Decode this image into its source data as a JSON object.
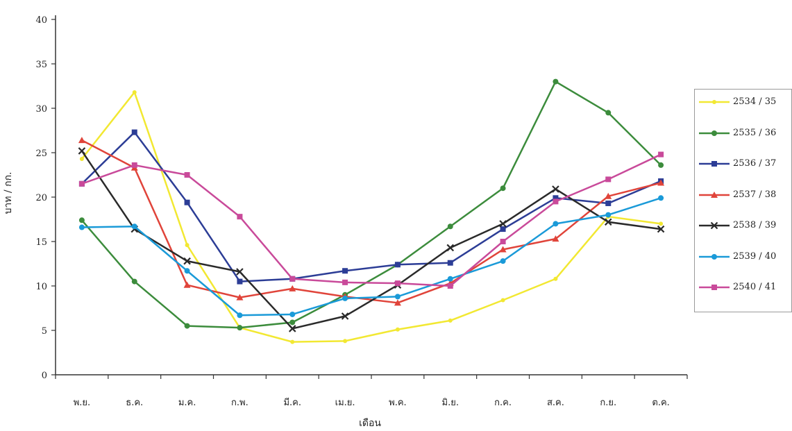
{
  "chart_data": {
    "type": "line",
    "categories": [
      "พ.ย.",
      "ธ.ค.",
      "ม.ค.",
      "ก.พ.",
      "มี.ค.",
      "เม.ย.",
      "พ.ค.",
      "มิ.ย.",
      "ก.ค.",
      "ส.ค.",
      "ก.ย.",
      "ต.ค."
    ],
    "xlabel": "เดือน",
    "ylabel": "บาท / กก.",
    "ylim": [
      0,
      40
    ],
    "yticks": [
      0,
      5,
      10,
      15,
      20,
      25,
      30,
      35,
      40
    ],
    "grid": false,
    "legend_position": "right",
    "series": [
      {
        "name": "2534 / 35",
        "color": "#f2e832",
        "marker": "dot",
        "values": [
          24.3,
          31.8,
          14.6,
          5.3,
          3.7,
          3.8,
          5.1,
          6.1,
          8.4,
          10.8,
          17.8,
          17.0
        ]
      },
      {
        "name": "2535 / 36",
        "color": "#3c8c3c",
        "marker": "circle",
        "values": [
          17.4,
          10.5,
          5.5,
          5.3,
          5.9,
          9.0,
          12.4,
          16.7,
          21.0,
          33.0,
          29.5,
          23.6
        ]
      },
      {
        "name": "2536 / 37",
        "color": "#2c3d96",
        "marker": "square",
        "values": [
          21.5,
          27.3,
          19.4,
          10.5,
          10.8,
          11.7,
          12.4,
          12.6,
          16.4,
          19.9,
          19.3,
          21.8
        ]
      },
      {
        "name": "2537 / 38",
        "color": "#e0443a",
        "marker": "triangle",
        "values": [
          26.4,
          23.3,
          10.1,
          8.7,
          9.7,
          8.8,
          8.1,
          10.3,
          14.1,
          15.3,
          20.1,
          21.6
        ]
      },
      {
        "name": "2538 / 39",
        "color": "#2a2a2a",
        "marker": "x",
        "values": [
          25.2,
          16.4,
          12.8,
          11.6,
          5.2,
          6.6,
          10.1,
          14.3,
          17.0,
          20.9,
          17.2,
          16.4
        ]
      },
      {
        "name": "2539 / 40",
        "color": "#1a9ad8",
        "marker": "circle",
        "values": [
          16.6,
          16.7,
          11.7,
          6.7,
          6.8,
          8.6,
          8.8,
          10.8,
          12.8,
          17.0,
          18.0,
          19.9
        ]
      },
      {
        "name": "2540 / 41",
        "color": "#c94a9a",
        "marker": "square",
        "values": [
          21.5,
          23.6,
          22.5,
          17.8,
          10.8,
          10.4,
          10.3,
          10.0,
          15.0,
          19.5,
          22.0,
          24.8
        ]
      }
    ]
  }
}
